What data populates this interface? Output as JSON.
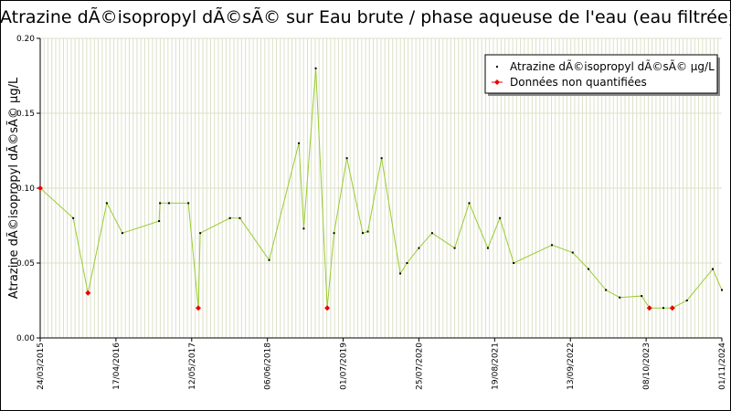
{
  "chart_data": {
    "type": "line",
    "title": "Atrazine dÃ©isopropyl dÃ©sÃ© sur Eau brute / phase aqueuse de l'eau (eau filtrée)",
    "ylabel": "Atrazine dÃ©isopropyl dÃ©sÃ© µg/L",
    "xlabel": "",
    "ylim": [
      0,
      0.2
    ],
    "xlim": [
      "2015-03-24",
      "2024-11-01"
    ],
    "y_ticks": [
      "0.00",
      "0.05",
      "0.10",
      "0.15",
      "0.20"
    ],
    "x_ticks": [
      {
        "label": "24/03/2015",
        "date": "2015-03-24"
      },
      {
        "label": "17/04/2016",
        "date": "2016-04-17"
      },
      {
        "label": "12/05/2017",
        "date": "2017-05-12"
      },
      {
        "label": "06/06/2018",
        "date": "2018-06-06"
      },
      {
        "label": "01/07/2019",
        "date": "2019-07-01"
      },
      {
        "label": "25/07/2020",
        "date": "2020-07-25"
      },
      {
        "label": "19/08/2021",
        "date": "2021-08-19"
      },
      {
        "label": "13/09/2022",
        "date": "2022-09-13"
      },
      {
        "label": "08/10/2023",
        "date": "2023-10-08"
      },
      {
        "label": "01/11/2024",
        "date": "2024-11-01"
      }
    ],
    "grid": true,
    "legend_position": "top-right",
    "colors": {
      "line": "#99cc33",
      "point": "#000000",
      "non_quantified": "#ee0000"
    },
    "series": [
      {
        "name": "Atrazine dÃ©isopropyl dÃ©sÃ© µg/L",
        "points": [
          {
            "x": "2015-03-24",
            "y": 0.1,
            "nq": true
          },
          {
            "x": "2015-09-10",
            "y": 0.08,
            "nq": false
          },
          {
            "x": "2015-11-25",
            "y": 0.03,
            "nq": true
          },
          {
            "x": "2016-03-01",
            "y": 0.09,
            "nq": false
          },
          {
            "x": "2016-05-20",
            "y": 0.07,
            "nq": false
          },
          {
            "x": "2016-11-25",
            "y": 0.078,
            "nq": false
          },
          {
            "x": "2016-11-30",
            "y": 0.09,
            "nq": false
          },
          {
            "x": "2017-01-15",
            "y": 0.09,
            "nq": false
          },
          {
            "x": "2017-04-25",
            "y": 0.09,
            "nq": false
          },
          {
            "x": "2017-06-15",
            "y": 0.02,
            "nq": true
          },
          {
            "x": "2017-06-25",
            "y": 0.07,
            "nq": false
          },
          {
            "x": "2017-11-25",
            "y": 0.08,
            "nq": false
          },
          {
            "x": "2018-01-15",
            "y": 0.08,
            "nq": false
          },
          {
            "x": "2018-06-15",
            "y": 0.052,
            "nq": false
          },
          {
            "x": "2018-11-15",
            "y": 0.13,
            "nq": false
          },
          {
            "x": "2018-12-10",
            "y": 0.073,
            "nq": false
          },
          {
            "x": "2019-02-10",
            "y": 0.18,
            "nq": false
          },
          {
            "x": "2019-04-10",
            "y": 0.02,
            "nq": true
          },
          {
            "x": "2019-05-15",
            "y": 0.07,
            "nq": false
          },
          {
            "x": "2019-07-20",
            "y": 0.12,
            "nq": false
          },
          {
            "x": "2019-10-10",
            "y": 0.07,
            "nq": false
          },
          {
            "x": "2019-11-05",
            "y": 0.071,
            "nq": false
          },
          {
            "x": "2020-01-15",
            "y": 0.12,
            "nq": false
          },
          {
            "x": "2020-04-20",
            "y": 0.043,
            "nq": false
          },
          {
            "x": "2020-05-25",
            "y": 0.05,
            "nq": false
          },
          {
            "x": "2020-07-25",
            "y": 0.06,
            "nq": false
          },
          {
            "x": "2020-10-01",
            "y": 0.07,
            "nq": false
          },
          {
            "x": "2021-01-25",
            "y": 0.06,
            "nq": false
          },
          {
            "x": "2021-04-10",
            "y": 0.09,
            "nq": false
          },
          {
            "x": "2021-07-15",
            "y": 0.06,
            "nq": false
          },
          {
            "x": "2021-09-15",
            "y": 0.08,
            "nq": false
          },
          {
            "x": "2021-11-25",
            "y": 0.05,
            "nq": false
          },
          {
            "x": "2022-06-10",
            "y": 0.062,
            "nq": false
          },
          {
            "x": "2022-09-25",
            "y": 0.057,
            "nq": false
          },
          {
            "x": "2022-12-15",
            "y": 0.046,
            "nq": false
          },
          {
            "x": "2023-03-15",
            "y": 0.032,
            "nq": false
          },
          {
            "x": "2023-05-25",
            "y": 0.027,
            "nq": false
          },
          {
            "x": "2023-09-15",
            "y": 0.028,
            "nq": false
          },
          {
            "x": "2023-10-25",
            "y": 0.02,
            "nq": true
          },
          {
            "x": "2024-01-05",
            "y": 0.02,
            "nq": false
          },
          {
            "x": "2024-02-20",
            "y": 0.02,
            "nq": true
          },
          {
            "x": "2024-05-05",
            "y": 0.025,
            "nq": false
          },
          {
            "x": "2024-09-15",
            "y": 0.046,
            "nq": false
          },
          {
            "x": "2024-11-01",
            "y": 0.032,
            "nq": false
          }
        ]
      }
    ],
    "legend": [
      {
        "label": "Atrazine dÃ©isopropyl dÃ©sÃ© µg/L",
        "kind": "quantified"
      },
      {
        "label": "Données non quantifiées",
        "kind": "non_quantified"
      }
    ]
  }
}
